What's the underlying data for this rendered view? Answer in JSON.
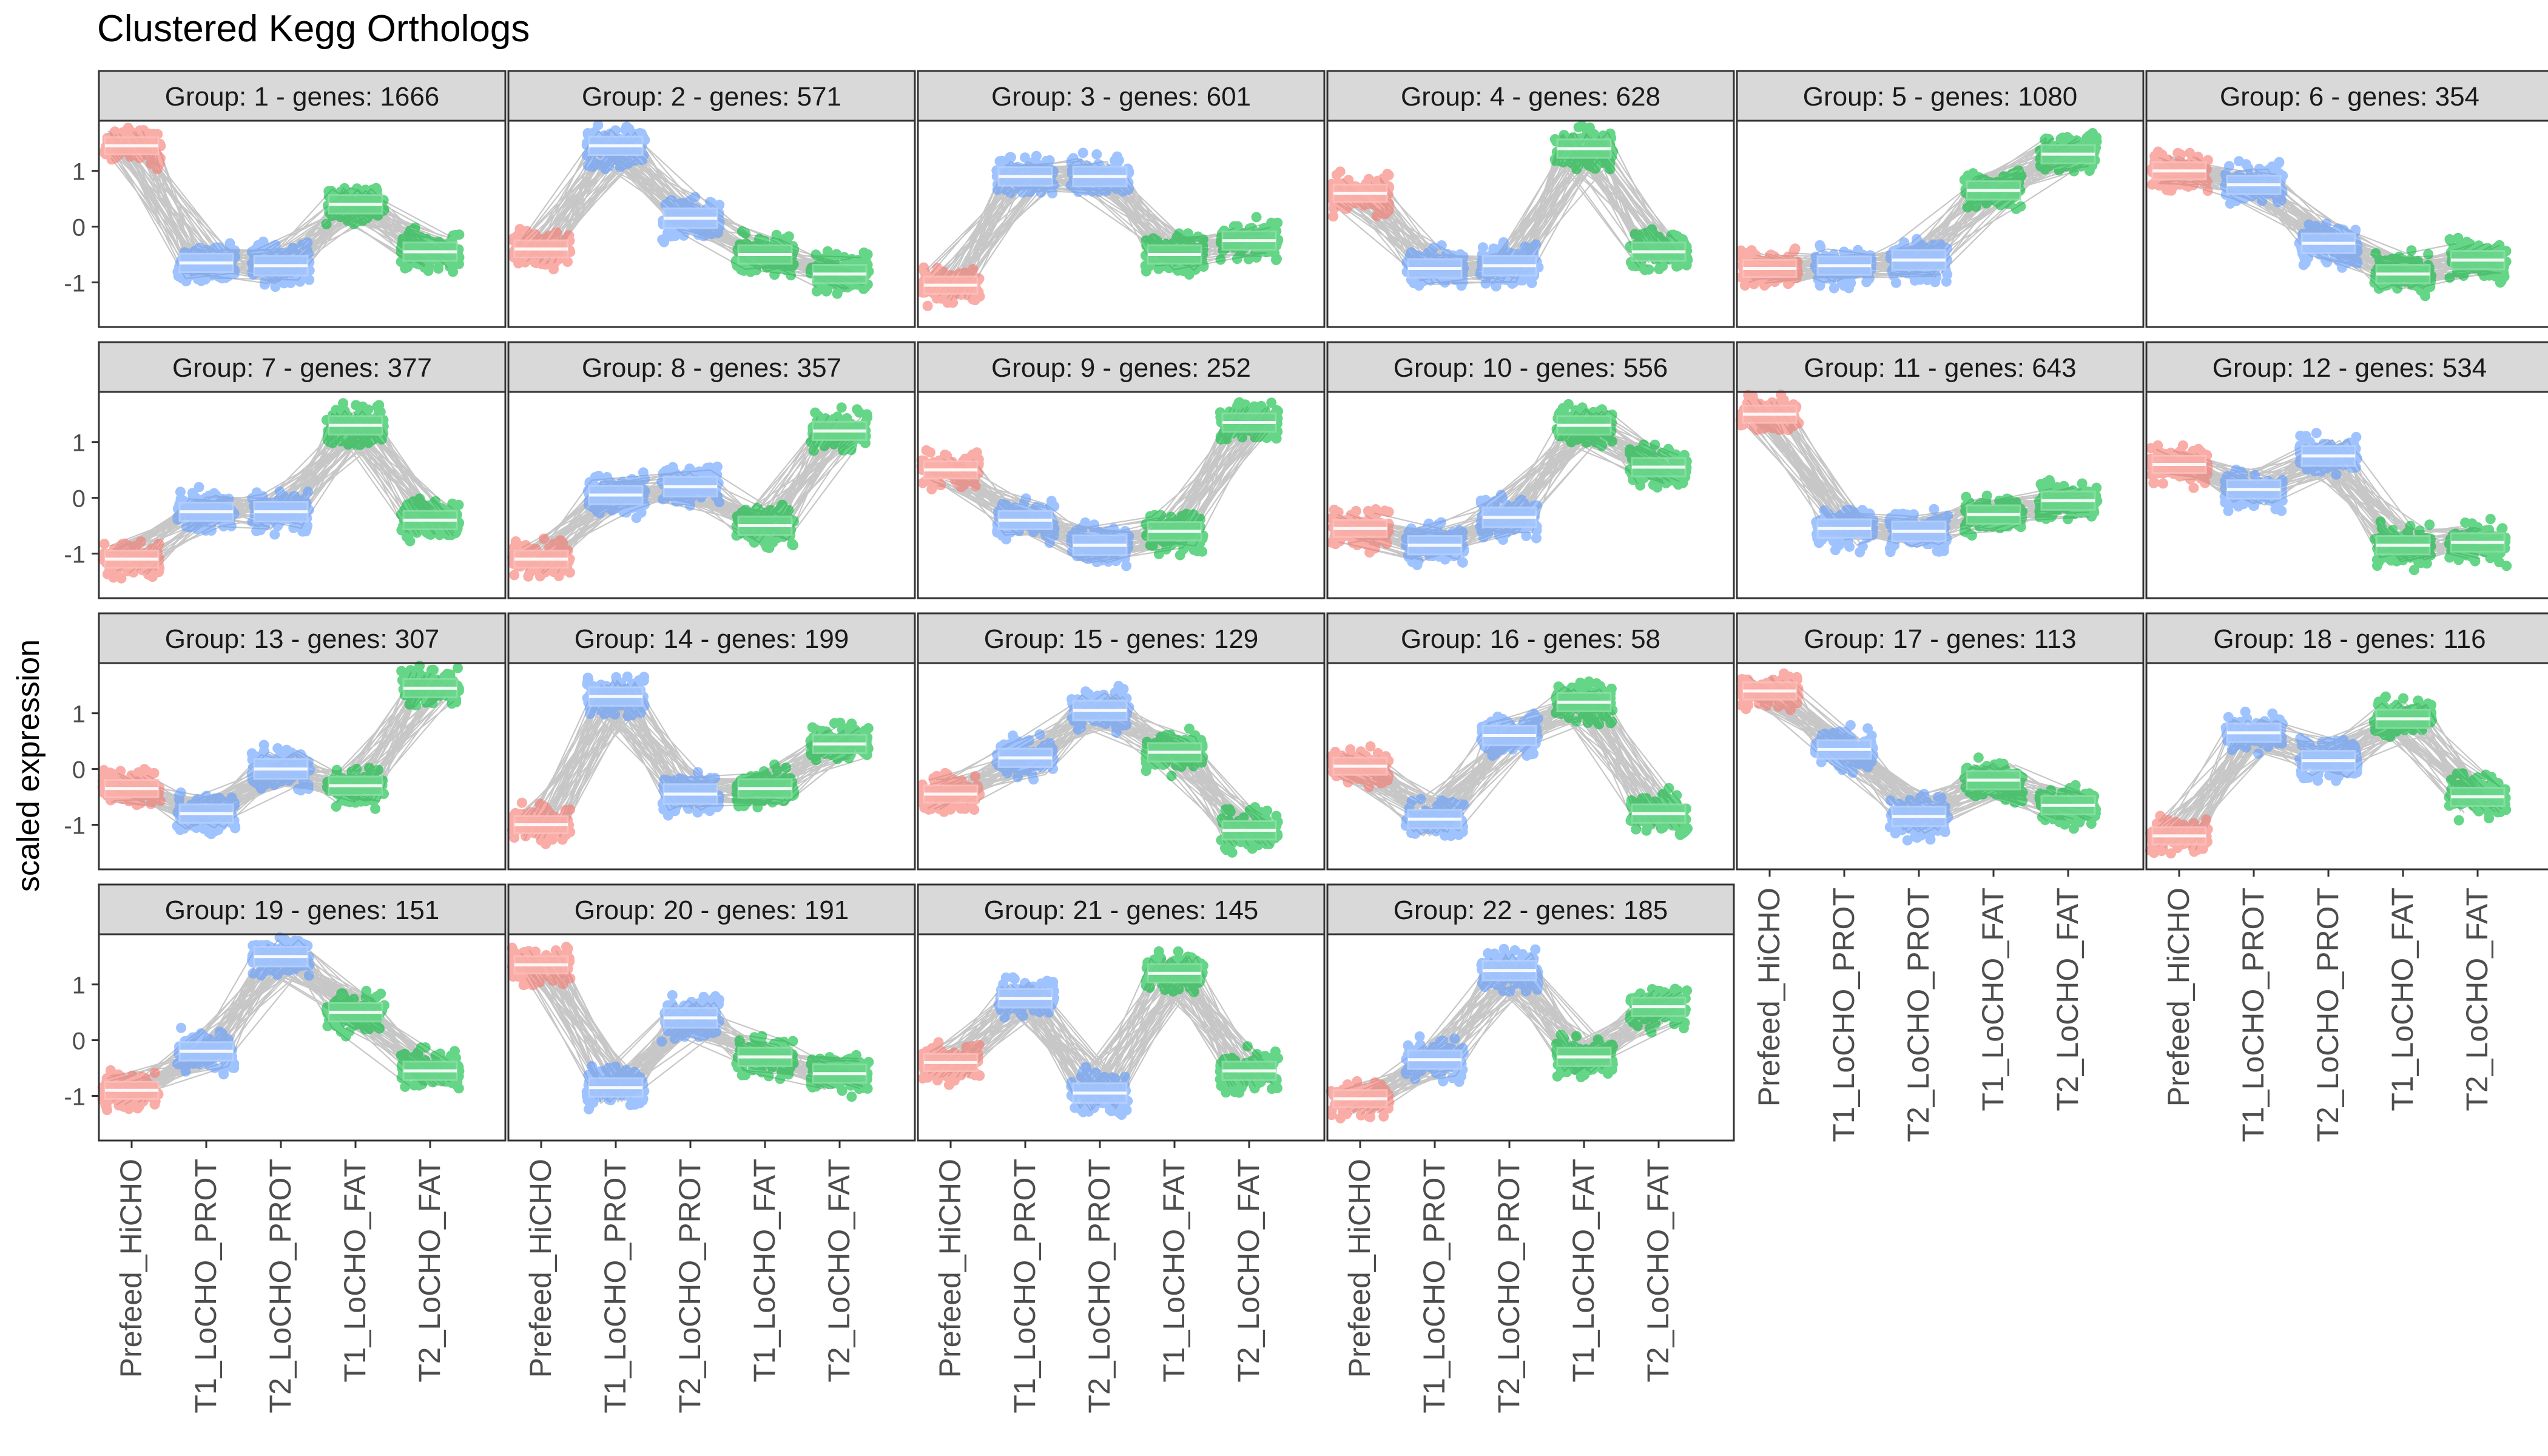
{
  "title": "Clustered Kegg Orthologs",
  "ylabel": "scaled expression",
  "colors": {
    "Prefeed_HiCHO": "#F8766D",
    "T1_LoCHO_PROT": "#619CFF",
    "T2_LoCHO_PROT": "#619CFF",
    "T1_LoCHO_FAT": "#00BA38",
    "T2_LoCHO_FAT": "#00BA38",
    "strip_fill": "#D9D9D9",
    "trajectory_line": "#BEBEBE"
  },
  "chart_data": {
    "type": "scatter",
    "geoms": [
      "jittered points",
      "boxplot",
      "gene trajectory lines"
    ],
    "facet_label_template": "Group:  {n} - genes: {g}",
    "categories": [
      "Prefeed_HiCHO",
      "T1_LoCHO_PROT",
      "T2_LoCHO_PROT",
      "T1_LoCHO_FAT",
      "T2_LoCHO_FAT"
    ],
    "y_ticks": [
      1,
      0,
      -1
    ],
    "ylim": [
      -1.8,
      1.9
    ],
    "grid": false,
    "legend": "none",
    "facets": [
      {
        "group": "1",
        "genes": "1666",
        "medians": [
          1.45,
          -0.65,
          -0.7,
          0.4,
          -0.45
        ]
      },
      {
        "group": "2",
        "genes": "571",
        "medians": [
          -0.4,
          1.45,
          0.15,
          -0.5,
          -0.85
        ]
      },
      {
        "group": "3",
        "genes": "601",
        "medians": [
          -1.05,
          0.9,
          0.9,
          -0.5,
          -0.25
        ]
      },
      {
        "group": "4",
        "genes": "628",
        "medians": [
          0.6,
          -0.75,
          -0.7,
          1.4,
          -0.45
        ]
      },
      {
        "group": "5",
        "genes": "1080",
        "medians": [
          -0.75,
          -0.7,
          -0.6,
          0.65,
          1.3
        ]
      },
      {
        "group": "6",
        "genes": "354",
        "medians": [
          1.0,
          0.75,
          -0.3,
          -0.85,
          -0.6
        ]
      },
      {
        "group": "7",
        "genes": "377",
        "medians": [
          -1.1,
          -0.25,
          -0.25,
          1.3,
          -0.4
        ]
      },
      {
        "group": "8",
        "genes": "357",
        "medians": [
          -1.1,
          0.05,
          0.2,
          -0.5,
          1.2
        ]
      },
      {
        "group": "9",
        "genes": "252",
        "medians": [
          0.5,
          -0.4,
          -0.85,
          -0.6,
          1.35
        ]
      },
      {
        "group": "10",
        "genes": "556",
        "medians": [
          -0.55,
          -0.85,
          -0.35,
          1.3,
          0.55
        ]
      },
      {
        "group": "11",
        "genes": "643",
        "medians": [
          1.5,
          -0.55,
          -0.6,
          -0.3,
          -0.05
        ]
      },
      {
        "group": "12",
        "genes": "534",
        "medians": [
          0.6,
          0.15,
          0.75,
          -0.85,
          -0.8
        ]
      },
      {
        "group": "13",
        "genes": "307",
        "medians": [
          -0.35,
          -0.8,
          0.0,
          -0.3,
          1.45
        ]
      },
      {
        "group": "14",
        "genes": "199",
        "medians": [
          -1.0,
          1.3,
          -0.45,
          -0.35,
          0.45
        ]
      },
      {
        "group": "15",
        "genes": "129",
        "medians": [
          -0.45,
          0.2,
          1.05,
          0.3,
          -1.1
        ]
      },
      {
        "group": "16",
        "genes": "58",
        "medians": [
          0.05,
          -0.9,
          0.6,
          1.2,
          -0.8
        ]
      },
      {
        "group": "17",
        "genes": "113",
        "medians": [
          1.4,
          0.35,
          -0.85,
          -0.2,
          -0.65
        ]
      },
      {
        "group": "18",
        "genes": "116",
        "medians": [
          -1.2,
          0.65,
          0.15,
          0.9,
          -0.5
        ]
      },
      {
        "group": "19",
        "genes": "151",
        "medians": [
          -0.9,
          -0.2,
          1.5,
          0.5,
          -0.55
        ]
      },
      {
        "group": "20",
        "genes": "191",
        "medians": [
          1.35,
          -0.85,
          0.4,
          -0.3,
          -0.6
        ]
      },
      {
        "group": "21",
        "genes": "145",
        "medians": [
          -0.4,
          0.75,
          -0.95,
          1.2,
          -0.55
        ]
      },
      {
        "group": "22",
        "genes": "185",
        "medians": [
          -1.05,
          -0.35,
          1.25,
          -0.3,
          0.6
        ]
      }
    ]
  }
}
